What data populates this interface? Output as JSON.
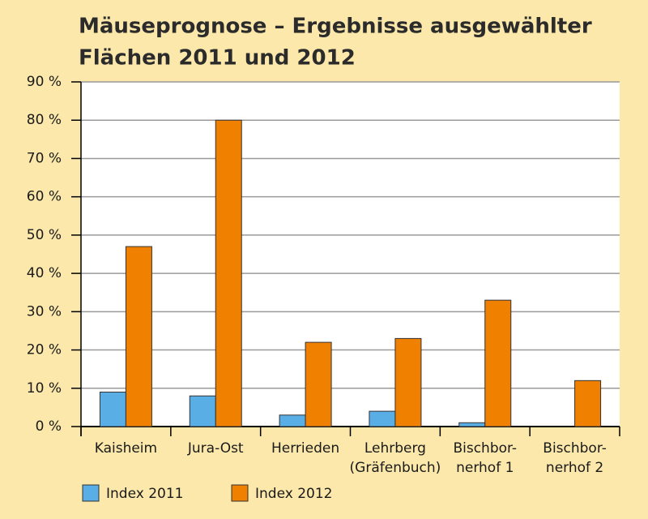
{
  "chart_data": {
    "type": "bar",
    "title": [
      "Mäuseprognose – Ergebnisse ausgewählter",
      "Flächen 2011 und 2012"
    ],
    "categories": [
      [
        "Kaisheim"
      ],
      [
        "Jura-Ost"
      ],
      [
        "Herrieden"
      ],
      [
        "Lehrberg",
        "(Gräfenbuch)"
      ],
      [
        "Bischbor-",
        "nerhof 1"
      ],
      [
        "Bischbor-",
        "nerhof 2"
      ]
    ],
    "series": [
      {
        "name": "Index 2011",
        "color": "#5aaee6",
        "values": [
          9,
          8,
          3,
          4,
          1,
          null
        ]
      },
      {
        "name": "Index 2012",
        "color": "#f08000",
        "values": [
          47,
          80,
          22,
          23,
          33,
          12
        ]
      }
    ],
    "ylim": [
      0,
      90
    ],
    "yticks": [
      {
        "value": 0,
        "label": "0 %"
      },
      {
        "value": 10,
        "label": "10 %"
      },
      {
        "value": 20,
        "label": "20 %"
      },
      {
        "value": 30,
        "label": "30 %"
      },
      {
        "value": 40,
        "label": "40 %"
      },
      {
        "value": 50,
        "label": "50 %"
      },
      {
        "value": 60,
        "label": "60 %"
      },
      {
        "value": 70,
        "label": "70 %"
      },
      {
        "value": 80,
        "label": "80 %"
      },
      {
        "value": 90,
        "label": "90 %"
      }
    ],
    "grid": true
  }
}
